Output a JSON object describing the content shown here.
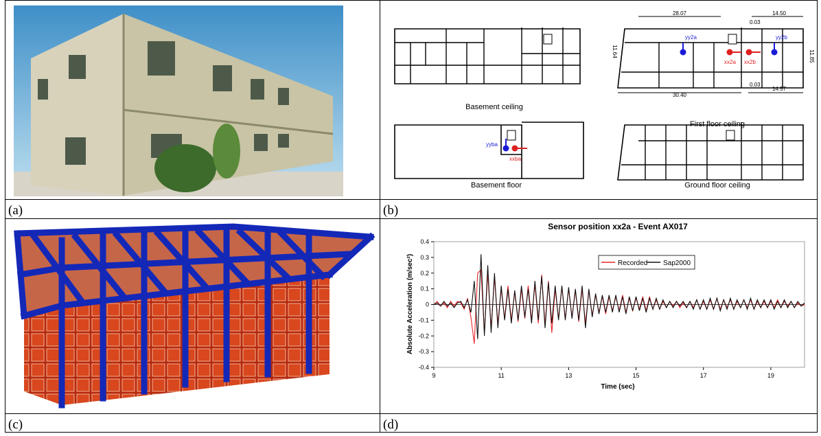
{
  "panels": {
    "a": {
      "label": "(a)"
    },
    "b": {
      "label": "(b)",
      "plans": [
        {
          "caption": "Basement ceiling"
        },
        {
          "caption": "First floor ceiling",
          "dimensions": [
            "28.07",
            "14.50",
            "0.03",
            "11.64",
            "11.85",
            "30.40",
            "0.03",
            "14.57"
          ],
          "sensors": [
            "yy2a",
            "xx2a",
            "xx2b",
            "yy2b"
          ]
        },
        {
          "caption": "Basement floor",
          "sensors": [
            "yyba",
            "xxba"
          ]
        },
        {
          "caption": "Ground floor ceiling"
        }
      ]
    },
    "c": {
      "label": "(c)"
    },
    "d": {
      "label": "(d)"
    }
  },
  "chart_data": {
    "type": "line",
    "title": "Sensor position xx2a - Event AX017",
    "x_label": "Time (sec)",
    "y_label": "Absolute Acceleration (m/sec²)",
    "xlim": [
      9,
      20
    ],
    "ylim": [
      -0.4,
      0.4
    ],
    "xticks": [
      9,
      11,
      13,
      15,
      17,
      19
    ],
    "yticks": [
      0.4,
      0.3,
      0.2,
      0.1,
      0,
      -0.1,
      -0.2,
      -0.3,
      -0.4
    ],
    "x": [
      9,
      9.1,
      9.2,
      9.3,
      9.4,
      9.5,
      9.6,
      9.7,
      9.8,
      9.9,
      10,
      10.1,
      10.2,
      10.3,
      10.4,
      10.5,
      10.6,
      10.7,
      10.8,
      10.9,
      11,
      11.1,
      11.2,
      11.3,
      11.4,
      11.5,
      11.6,
      11.7,
      11.8,
      11.9,
      12,
      12.1,
      12.2,
      12.3,
      12.4,
      12.5,
      12.6,
      12.7,
      12.8,
      12.9,
      13,
      13.1,
      13.2,
      13.3,
      13.4,
      13.5,
      13.6,
      13.7,
      13.8,
      13.9,
      14,
      14.1,
      14.2,
      14.3,
      14.4,
      14.5,
      14.6,
      14.7,
      14.8,
      14.9,
      15,
      15.1,
      15.2,
      15.3,
      15.4,
      15.5,
      15.6,
      15.7,
      15.8,
      15.9,
      16,
      16.1,
      16.2,
      16.3,
      16.4,
      16.5,
      16.6,
      16.7,
      16.8,
      16.9,
      17,
      17.1,
      17.2,
      17.3,
      17.4,
      17.5,
      17.6,
      17.7,
      17.8,
      17.9,
      18,
      18.1,
      18.2,
      18.3,
      18.4,
      18.5,
      18.6,
      18.7,
      18.8,
      18.9,
      19,
      19.1,
      19.2,
      19.3,
      19.4,
      19.5,
      19.6,
      19.7,
      19.8,
      19.9,
      20
    ],
    "series": [
      {
        "name": "Recorded",
        "color": "#e8262a",
        "values": [
          0,
          0.02,
          -0.01,
          0.01,
          -0.02,
          0.02,
          -0.01,
          0.02,
          0.01,
          -0.03,
          0.04,
          -0.08,
          -0.25,
          0.2,
          0.22,
          -0.18,
          0.2,
          -0.15,
          0.17,
          -0.12,
          0.1,
          -0.09,
          0.12,
          -0.1,
          0.08,
          -0.11,
          0.1,
          -0.09,
          0.12,
          -0.1,
          0.13,
          -0.12,
          0.19,
          -0.13,
          0.15,
          -0.18,
          0.1,
          -0.09,
          0.11,
          -0.09,
          0.1,
          -0.08,
          0.09,
          -0.11,
          0.1,
          -0.12,
          0.09,
          -0.07,
          0.06,
          -0.05,
          0.05,
          -0.06,
          0.05,
          -0.04,
          0.05,
          -0.04,
          0.06,
          -0.05,
          0.04,
          -0.04,
          0.04,
          -0.03,
          0.05,
          -0.04,
          0.05,
          -0.03,
          0.03,
          -0.03,
          0.02,
          -0.02,
          0.02,
          -0.01,
          0.02,
          -0.02,
          0.01,
          -0.02,
          0.02,
          -0.02,
          0.03,
          -0.03,
          0.02,
          -0.03,
          0.03,
          -0.03,
          0.04,
          -0.03,
          0.03,
          -0.02,
          0.03,
          -0.03,
          0.02,
          -0.02,
          0.03,
          -0.02,
          0.03,
          -0.03,
          0.02,
          -0.02,
          0.02,
          -0.02,
          0.02,
          -0.02,
          0.03,
          -0.02,
          0.02,
          -0.01,
          0.02,
          -0.02,
          0.01,
          -0.01,
          0
        ]
      },
      {
        "name": "Sap2000",
        "color": "#111111",
        "values": [
          0,
          0.01,
          -0.01,
          0.02,
          -0.01,
          0.01,
          -0.02,
          0.01,
          0.02,
          -0.02,
          0.03,
          -0.05,
          0.15,
          -0.22,
          0.32,
          -0.2,
          0.25,
          -0.18,
          0.2,
          -0.15,
          0.12,
          -0.1,
          0.1,
          -0.12,
          0.09,
          -0.1,
          0.12,
          -0.08,
          0.1,
          -0.12,
          0.15,
          -0.1,
          0.18,
          -0.15,
          0.14,
          -0.12,
          0.12,
          -0.1,
          0.12,
          -0.1,
          0.11,
          -0.09,
          0.1,
          -0.1,
          0.12,
          -0.15,
          0.1,
          -0.08,
          0.07,
          -0.06,
          0.06,
          -0.05,
          0.06,
          -0.05,
          0.06,
          -0.05,
          0.05,
          -0.06,
          0.05,
          -0.04,
          0.05,
          -0.04,
          0.04,
          -0.05,
          0.04,
          -0.03,
          0.04,
          -0.03,
          0.03,
          -0.02,
          0.02,
          -0.02,
          0.02,
          -0.01,
          0.02,
          -0.02,
          0.02,
          -0.03,
          0.03,
          -0.03,
          0.03,
          -0.03,
          0.04,
          -0.03,
          0.04,
          -0.04,
          0.03,
          -0.03,
          0.04,
          -0.03,
          0.03,
          -0.02,
          0.03,
          -0.03,
          0.04,
          -0.03,
          0.03,
          -0.02,
          0.03,
          -0.02,
          0.03,
          -0.03,
          0.02,
          -0.02,
          0.03,
          -0.02,
          0.02,
          -0.02,
          0.02,
          -0.01,
          0.01
        ]
      }
    ]
  }
}
